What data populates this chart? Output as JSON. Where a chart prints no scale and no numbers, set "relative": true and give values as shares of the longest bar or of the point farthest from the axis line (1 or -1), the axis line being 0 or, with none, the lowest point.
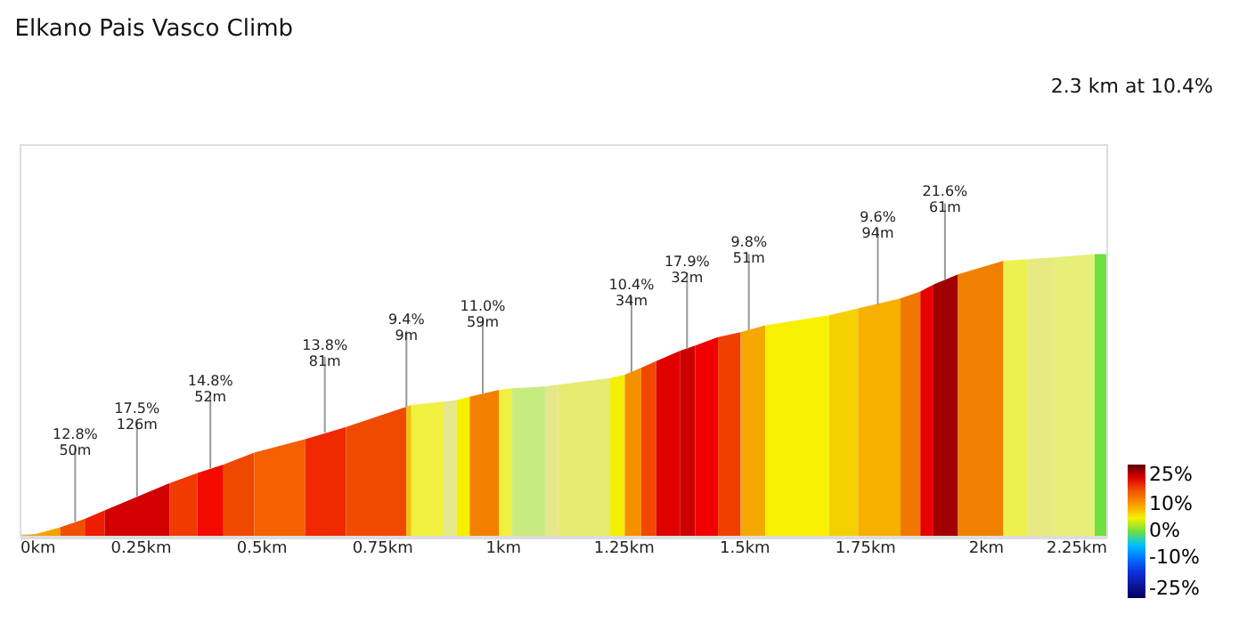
{
  "chart_data": {
    "type": "area",
    "title": "Elkano Pais Vasco Climb",
    "subtitle": "2.3 km at 10.4%",
    "relative": true,
    "grid": false,
    "xlim": [
      0,
      2.25
    ],
    "xticks": [
      {
        "value": 0,
        "label": "0km"
      },
      {
        "value": 0.25,
        "label": "0.25km"
      },
      {
        "value": 0.5,
        "label": "0.5km"
      },
      {
        "value": 0.75,
        "label": "0.75km"
      },
      {
        "value": 1,
        "label": "1km"
      },
      {
        "value": 1.25,
        "label": "1.25km"
      },
      {
        "value": 1.5,
        "label": "1.5km"
      },
      {
        "value": 1.75,
        "label": "1.75km"
      },
      {
        "value": 2,
        "label": "2km"
      },
      {
        "value": 2.25,
        "label": "2.25km"
      }
    ],
    "clim": [
      -25,
      25
    ],
    "cticks": [
      {
        "value": 25,
        "label": "25%"
      },
      {
        "value": 10,
        "label": "10%"
      },
      {
        "value": 0,
        "label": "0%"
      },
      {
        "value": -10,
        "label": "-10%"
      },
      {
        "value": -25,
        "label": "-25%"
      }
    ],
    "series": [
      {
        "color": "#f7a000",
        "x": [
          0,
          0.034
        ],
        "values": [
          0,
          0.006
        ]
      },
      {
        "color": "#f7a000",
        "x": [
          0.034,
          0.084
        ],
        "values": [
          0.006,
          0.03
        ]
      },
      {
        "color": "#f05000",
        "x": [
          0.084,
          0.135
        ],
        "values": [
          0.03,
          0.06
        ]
      },
      {
        "color": "#ee1c00",
        "x": [
          0.135,
          0.176
        ],
        "values": [
          0.06,
          0.09
        ]
      },
      {
        "color": "#d20000",
        "x": [
          0.176,
          0.311
        ],
        "values": [
          0.09,
          0.187
        ]
      },
      {
        "color": "#f03a00",
        "x": [
          0.311,
          0.368
        ],
        "values": [
          0.187,
          0.223
        ]
      },
      {
        "color": "#f50a00",
        "x": [
          0.368,
          0.422
        ],
        "values": [
          0.223,
          0.253
        ]
      },
      {
        "color": "#f04800",
        "x": [
          0.422,
          0.486
        ],
        "values": [
          0.253,
          0.295
        ]
      },
      {
        "color": "#f56000",
        "x": [
          0.486,
          0.591
        ],
        "values": [
          0.295,
          0.343
        ]
      },
      {
        "color": "#f02800",
        "x": [
          0.591,
          0.676
        ],
        "values": [
          0.343,
          0.386
        ]
      },
      {
        "color": "#f04a00",
        "x": [
          0.676,
          0.801
        ],
        "values": [
          0.386,
          0.458
        ]
      },
      {
        "color": "#f5c000",
        "x": [
          0.801,
          0.811
        ],
        "values": [
          0.458,
          0.464
        ]
      },
      {
        "color": "#f0f040",
        "x": [
          0.811,
          0.878
        ],
        "values": [
          0.464,
          0.476
        ]
      },
      {
        "color": "#e6e68c",
        "x": [
          0.878,
          0.905
        ],
        "values": [
          0.476,
          0.482
        ]
      },
      {
        "color": "#f5f000",
        "x": [
          0.905,
          0.932
        ],
        "values": [
          0.482,
          0.494
        ]
      },
      {
        "color": "#f58000",
        "x": [
          0.932,
          0.993
        ],
        "values": [
          0.494,
          0.518
        ]
      },
      {
        "color": "#f0f040",
        "x": [
          0.993,
          1.02
        ],
        "values": [
          0.518,
          0.524
        ]
      },
      {
        "color": "#c8eb80",
        "x": [
          1.02,
          1.088
        ],
        "values": [
          0.524,
          0.53
        ]
      },
      {
        "color": "#e6e68c",
        "x": [
          1.088,
          1.115
        ],
        "values": [
          0.53,
          0.536
        ]
      },
      {
        "color": "#e6ea70",
        "x": [
          1.115,
          1.223
        ],
        "values": [
          0.536,
          0.56
        ]
      },
      {
        "color": "#f5f000",
        "x": [
          1.223,
          1.253
        ],
        "values": [
          0.56,
          0.572
        ]
      },
      {
        "color": "#f59000",
        "x": [
          1.253,
          1.287
        ],
        "values": [
          0.572,
          0.596
        ]
      },
      {
        "color": "#f04800",
        "x": [
          1.287,
          1.318
        ],
        "values": [
          0.596,
          0.62
        ]
      },
      {
        "color": "#e00000",
        "x": [
          1.318,
          1.368
        ],
        "values": [
          0.62,
          0.657
        ]
      },
      {
        "color": "#cc0000",
        "x": [
          1.368,
          1.399
        ],
        "values": [
          0.657,
          0.675
        ]
      },
      {
        "color": "#f00000",
        "x": [
          1.399,
          1.446
        ],
        "values": [
          0.675,
          0.705
        ]
      },
      {
        "color": "#f04000",
        "x": [
          1.446,
          1.493
        ],
        "values": [
          0.705,
          0.723
        ]
      },
      {
        "color": "#f5a800",
        "x": [
          1.493,
          1.544
        ],
        "values": [
          0.723,
          0.747
        ]
      },
      {
        "color": "#f8f000",
        "x": [
          1.544,
          1.676
        ],
        "values": [
          0.747,
          0.783
        ]
      },
      {
        "color": "#f5d000",
        "x": [
          1.676,
          1.736
        ],
        "values": [
          0.783,
          0.807
        ]
      },
      {
        "color": "#f5b000",
        "x": [
          1.736,
          1.824
        ],
        "values": [
          0.807,
          0.843
        ]
      },
      {
        "color": "#f07800",
        "x": [
          1.824,
          1.865
        ],
        "values": [
          0.843,
          0.867
        ]
      },
      {
        "color": "#e80000",
        "x": [
          1.865,
          1.892
        ],
        "values": [
          0.867,
          0.892
        ]
      },
      {
        "color": "#a00000",
        "x": [
          1.892,
          1.943
        ],
        "values": [
          0.892,
          0.928
        ]
      },
      {
        "color": "#f08000",
        "x": [
          1.943,
          2.037
        ],
        "values": [
          0.928,
          0.976
        ]
      },
      {
        "color": "#eef050",
        "x": [
          2.037,
          2.088
        ],
        "values": [
          0.976,
          0.982
        ]
      },
      {
        "color": "#e6ea80",
        "x": [
          2.088,
          2.139
        ],
        "values": [
          0.982,
          0.988
        ]
      },
      {
        "color": "#e6ef78",
        "x": [
          2.139,
          2.226
        ],
        "values": [
          0.988,
          1.0
        ]
      },
      {
        "color": "#6ee040",
        "x": [
          2.226,
          2.25
        ],
        "values": [
          1.0,
          1.0
        ]
      }
    ],
    "annotations": [
      {
        "text": "12.8%\n50m",
        "x": 0.115,
        "y": 0.05
      },
      {
        "text": "17.5%\n126m",
        "x": 0.243,
        "y": 0.14
      },
      {
        "text": "14.8%\n52m",
        "x": 0.395,
        "y": 0.24
      },
      {
        "text": "13.8%\n81m",
        "x": 0.632,
        "y": 0.366
      },
      {
        "text": "9.4%\n9m",
        "x": 0.801,
        "y": 0.458
      },
      {
        "text": "11.0%\n59m",
        "x": 0.959,
        "y": 0.505
      },
      {
        "text": "10.4%\n34m",
        "x": 1.267,
        "y": 0.58
      },
      {
        "text": "17.9%\n32m",
        "x": 1.382,
        "y": 0.663
      },
      {
        "text": "9.8%\n51m",
        "x": 1.51,
        "y": 0.73
      },
      {
        "text": "9.6%\n94m",
        "x": 1.777,
        "y": 0.82
      },
      {
        "text": "21.6%\n61m",
        "x": 1.916,
        "y": 0.91
      }
    ]
  }
}
